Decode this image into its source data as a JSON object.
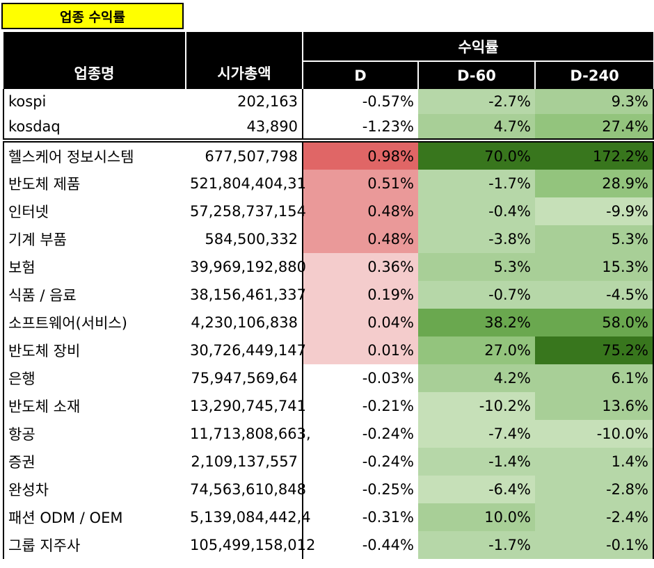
{
  "title": "업종 수익률",
  "header": {
    "sector": "업종명",
    "marketcap": "시가총액",
    "returns": "수익률",
    "d": "D",
    "d60": "D-60",
    "d240": "D-240"
  },
  "indices": [
    {
      "name": "kospi",
      "marketcap": "202,163",
      "d": "-0.57%",
      "d60": "-2.7%",
      "d240": "9.3%"
    },
    {
      "name": "kosdaq",
      "marketcap": "43,890",
      "d": "-1.23%",
      "d60": "4.7%",
      "d240": "27.4%"
    }
  ],
  "rows": [
    {
      "name": "헬스케어 정보시스템",
      "marketcap": "677,507,798",
      "d": "0.98%",
      "d60": "70.0%",
      "d240": "172.2%"
    },
    {
      "name": "반도체 제품",
      "marketcap": "521,804,404,31",
      "d": "0.51%",
      "d60": "-1.7%",
      "d240": "28.9%"
    },
    {
      "name": "인터넷",
      "marketcap": "57,258,737,154",
      "d": "0.48%",
      "d60": "-0.4%",
      "d240": "-9.9%"
    },
    {
      "name": "기계 부품",
      "marketcap": "584,500,332",
      "d": "0.48%",
      "d60": "-3.8%",
      "d240": "5.3%"
    },
    {
      "name": "보험",
      "marketcap": "39,969,192,880",
      "d": "0.36%",
      "d60": "5.3%",
      "d240": "15.3%"
    },
    {
      "name": "식품 / 음료",
      "marketcap": "38,156,461,337",
      "d": "0.19%",
      "d60": "-0.7%",
      "d240": "-4.5%"
    },
    {
      "name": "소프트웨어(서비스)",
      "marketcap": "4,230,106,838",
      "d": "0.04%",
      "d60": "38.2%",
      "d240": "58.0%"
    },
    {
      "name": "반도체 장비",
      "marketcap": "30,726,449,147",
      "d": "0.01%",
      "d60": "27.0%",
      "d240": "75.2%"
    },
    {
      "name": "은행",
      "marketcap": "75,947,569,64",
      "d": "-0.03%",
      "d60": "4.2%",
      "d240": "6.1%"
    },
    {
      "name": "반도체 소재",
      "marketcap": "13,290,745,741",
      "d": "-0.21%",
      "d60": "-10.2%",
      "d240": "13.6%"
    },
    {
      "name": "항공",
      "marketcap": "11,713,808,663,",
      "d": "-0.24%",
      "d60": "-7.4%",
      "d240": "-10.0%"
    },
    {
      "name": "증권",
      "marketcap": "2,109,137,557",
      "d": "-0.24%",
      "d60": "-1.4%",
      "d240": "1.4%"
    },
    {
      "name": "완성차",
      "marketcap": "74,563,610,848",
      "d": "-0.25%",
      "d60": "-6.4%",
      "d240": "-2.8%"
    },
    {
      "name": "패션 ODM / OEM",
      "marketcap": "5,139,084,442,4",
      "d": "-0.31%",
      "d60": "10.0%",
      "d240": "-2.4%"
    },
    {
      "name": "그룹 지주사",
      "marketcap": "105,499,158,012",
      "d": "-0.44%",
      "d60": "-1.7%",
      "d240": "-0.1%"
    }
  ],
  "colors": {
    "title_bg": "#ffff00",
    "header_bg": "#000000",
    "red_strong": "#e06666",
    "red_mid": "#ea9999",
    "red_light": "#f4cccc",
    "green_darkest": "#38761d",
    "green_dark": "#6aa84f",
    "green_mid": "#93c47d",
    "green_light": "#b6d7a8",
    "green_pale": "#d9ead3"
  }
}
